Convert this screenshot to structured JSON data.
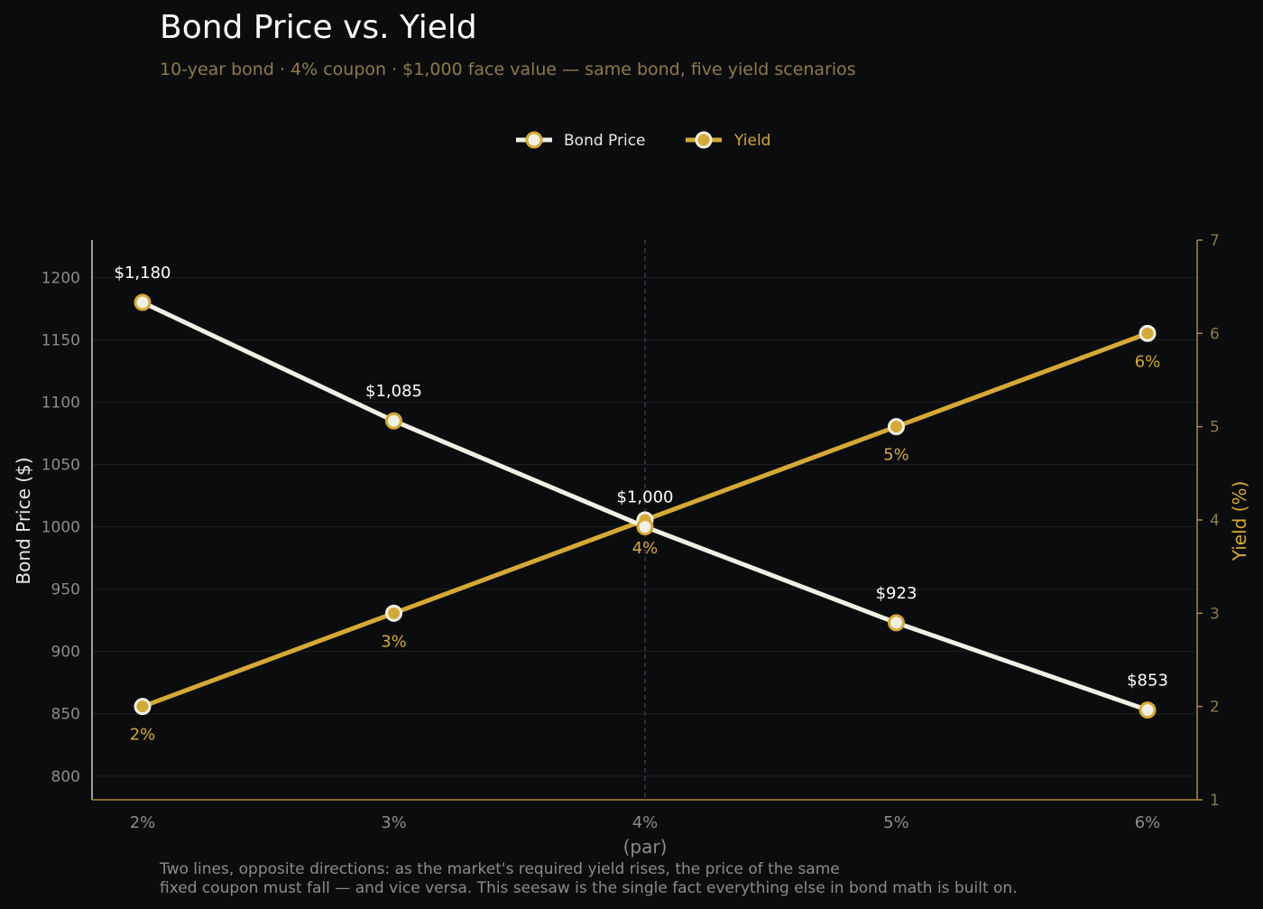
{
  "header": {
    "title": "Bond Price vs. Yield",
    "subtitle": "10-year bond · 4% coupon · $1,000 face value — same bond, five yield scenarios"
  },
  "footnote": {
    "line1": "Two lines, opposite directions: as the market's required yield rises, the price of the same",
    "line2": "fixed coupon must fall — and vice versa. This seesaw is the single fact everything else in bond math is built on."
  },
  "colors": {
    "price_line": "#f2efe6",
    "yield_line": "#d4a935",
    "background": "#0b0c0e",
    "grid": "#1e1f22",
    "axis_left": "#d0d0d0",
    "axis_right": "#b08a3a"
  },
  "chart_data": {
    "type": "line",
    "title": "Bond Price vs. Yield",
    "categories": [
      "2%",
      "3%",
      "4%",
      "5%",
      "6%"
    ],
    "category_note": "(par)",
    "par_index": 2,
    "series": [
      {
        "name": "Bond Price",
        "axis": "left",
        "values": [
          1180,
          1085,
          1000,
          923,
          853
        ],
        "labels": [
          "$1,180",
          "$1,085",
          "$1,000",
          "$923",
          "$853"
        ]
      },
      {
        "name": "Yield",
        "axis": "right",
        "values": [
          2,
          3,
          4,
          5,
          6
        ],
        "labels": [
          "2%",
          "3%",
          "4%",
          "5%",
          "6%"
        ]
      }
    ],
    "ylabel": "Bond Price ($)",
    "y2label": "Yield (%)",
    "ylim": [
      781,
      1230
    ],
    "yticks": [
      800,
      850,
      900,
      950,
      1000,
      1050,
      1100,
      1150,
      1200
    ],
    "y2lim": [
      1,
      7
    ],
    "y2ticks": [
      1,
      2,
      3,
      4,
      5,
      6,
      7
    ],
    "grid": true,
    "legend_position": "top-center"
  }
}
